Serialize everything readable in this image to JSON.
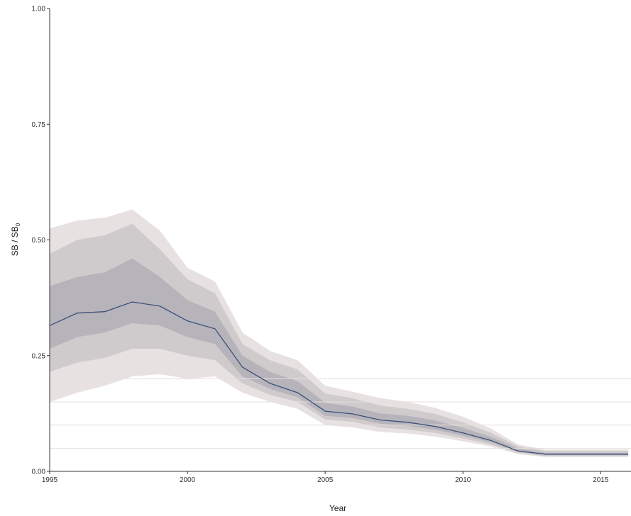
{
  "chart_data": {
    "type": "area",
    "xlabel": "Year",
    "ylabel_main": "SB / SB",
    "ylabel_sub": "0",
    "xlim": [
      1995,
      2016.1
    ],
    "ylim": [
      0,
      1
    ],
    "x_ticks": [
      1995,
      2000,
      2005,
      2010,
      2015
    ],
    "x_tick_labels": [
      "1995",
      "2000",
      "2005",
      "2010",
      "2015"
    ],
    "y_ticks": [
      0,
      0.25,
      0.5,
      0.75,
      1
    ],
    "y_tick_labels": [
      "0.00",
      "0.25",
      "0.50",
      "0.75",
      "1.00"
    ],
    "reference_lines": [
      0.05,
      0.1,
      0.15,
      0.2
    ],
    "x": [
      1995,
      1996,
      1997,
      1998,
      1999,
      2000,
      2001,
      2002,
      2003,
      2004,
      2005,
      2006,
      2007,
      2008,
      2009,
      2010,
      2011,
      2012,
      2013,
      2014,
      2015,
      2016
    ],
    "median": [
      0.315,
      0.342,
      0.345,
      0.366,
      0.357,
      0.325,
      0.308,
      0.225,
      0.19,
      0.17,
      0.13,
      0.124,
      0.111,
      0.106,
      0.097,
      0.083,
      0.067,
      0.044,
      0.037,
      0.037,
      0.037,
      0.037
    ],
    "bands": [
      {
        "level": "outer",
        "color": "#e8e1e1",
        "lower": [
          0.15,
          0.17,
          0.185,
          0.205,
          0.21,
          0.2,
          0.205,
          0.17,
          0.15,
          0.135,
          0.1,
          0.095,
          0.085,
          0.082,
          0.075,
          0.065,
          0.054,
          0.037,
          0.031,
          0.031,
          0.031,
          0.031
        ],
        "upper": [
          0.525,
          0.542,
          0.548,
          0.566,
          0.52,
          0.44,
          0.41,
          0.3,
          0.26,
          0.24,
          0.185,
          0.172,
          0.158,
          0.15,
          0.137,
          0.118,
          0.093,
          0.058,
          0.047,
          0.047,
          0.047,
          0.047
        ]
      },
      {
        "level": "middle",
        "color": "#cfcbcd",
        "lower": [
          0.215,
          0.235,
          0.245,
          0.265,
          0.265,
          0.25,
          0.24,
          0.19,
          0.165,
          0.15,
          0.112,
          0.107,
          0.095,
          0.09,
          0.083,
          0.071,
          0.058,
          0.04,
          0.033,
          0.033,
          0.033,
          0.033
        ],
        "upper": [
          0.47,
          0.5,
          0.51,
          0.535,
          0.48,
          0.415,
          0.385,
          0.275,
          0.24,
          0.22,
          0.168,
          0.158,
          0.142,
          0.135,
          0.124,
          0.106,
          0.084,
          0.054,
          0.044,
          0.044,
          0.044,
          0.044
        ]
      },
      {
        "level": "inner",
        "color": "#b6b4ba",
        "lower": [
          0.265,
          0.29,
          0.3,
          0.32,
          0.315,
          0.29,
          0.275,
          0.205,
          0.178,
          0.16,
          0.12,
          0.115,
          0.103,
          0.098,
          0.09,
          0.077,
          0.063,
          0.042,
          0.035,
          0.035,
          0.035,
          0.035
        ],
        "upper": [
          0.4,
          0.42,
          0.43,
          0.46,
          0.42,
          0.37,
          0.345,
          0.25,
          0.215,
          0.195,
          0.148,
          0.14,
          0.125,
          0.12,
          0.11,
          0.094,
          0.075,
          0.049,
          0.04,
          0.04,
          0.04,
          0.04
        ]
      }
    ],
    "line_color": "#3b4f7a",
    "refline_color": "#e4dede",
    "axis_color": "#333333"
  }
}
